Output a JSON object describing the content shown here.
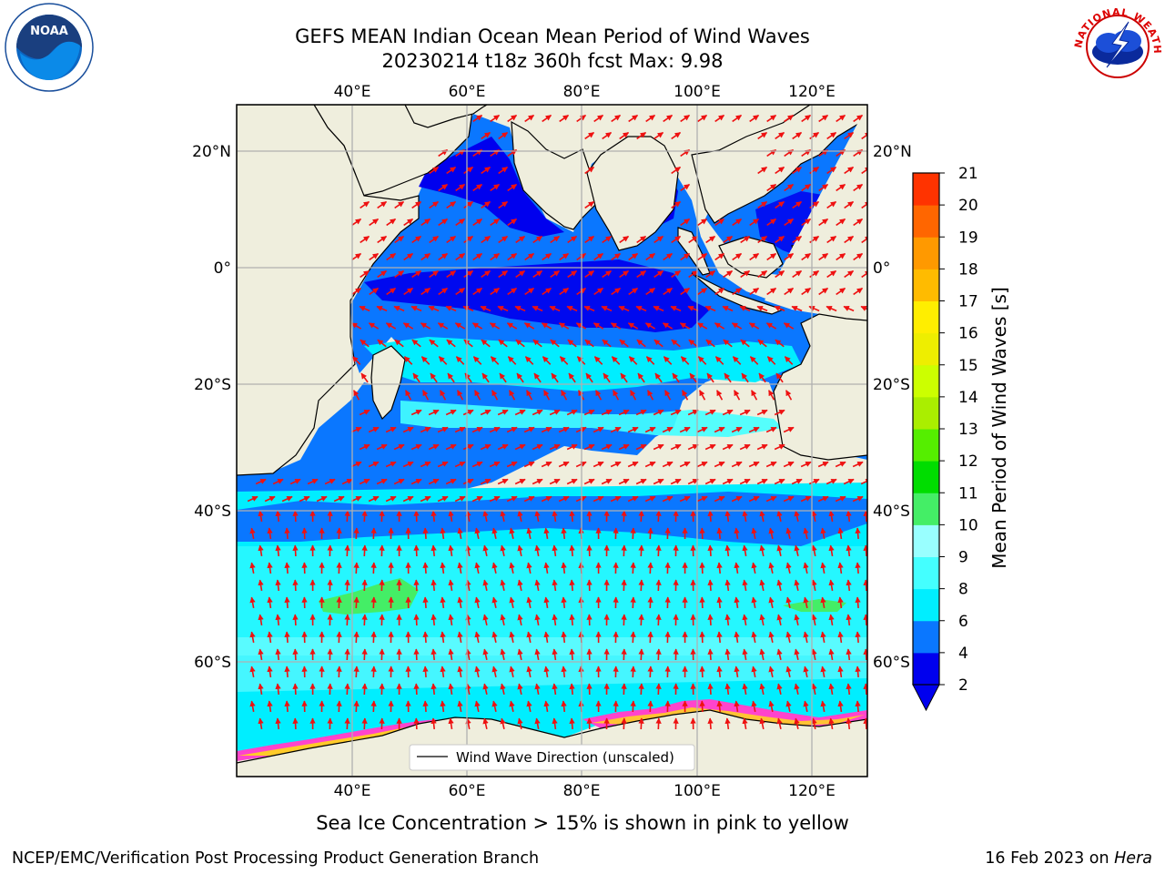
{
  "header": {
    "title_line1": "GEFS MEAN Indian Ocean Mean Period of Wind Waves",
    "title_line2": "20230214 t18z 360h fcst   Max: 9.98"
  },
  "logos": {
    "left": "NOAA",
    "right": "NATIONAL WEATHER SERVICE"
  },
  "map": {
    "lon_ticks": [
      "40°E",
      "60°E",
      "80°E",
      "100°E",
      "120°E"
    ],
    "lat_ticks": [
      "20°N",
      "0°",
      "20°S",
      "40°S",
      "60°S"
    ],
    "legend_label": "Wind Wave Direction (unscaled)",
    "colors": {
      "land": "#efeedd",
      "arrow": "#ee1111",
      "grid": "#b0b0b0"
    }
  },
  "colorbar": {
    "label": "Mean Period of Wind Waves [s]",
    "ticks": [
      "2",
      "4",
      "6",
      "8",
      "9",
      "10",
      "11",
      "12",
      "13",
      "14",
      "15",
      "16",
      "17",
      "18",
      "19",
      "20",
      "21"
    ],
    "colors": [
      "#0000ee",
      "#0a77ff",
      "#00eeff",
      "#44ffff",
      "#99ffff",
      "#44ee66",
      "#00dd00",
      "#55ee00",
      "#aaee00",
      "#ccff00",
      "#eeee00",
      "#ffee00",
      "#ffbb00",
      "#ff9900",
      "#ff6600",
      "#ff3300",
      "#ff0000"
    ]
  },
  "subtitle": "Sea Ice Concentration > 15% is shown in pink to yellow",
  "footer": {
    "left": "NCEP/EMC/Verification Post Processing Product Generation Branch",
    "right_date": "16 Feb 2023 on ",
    "right_host": "Hera"
  }
}
